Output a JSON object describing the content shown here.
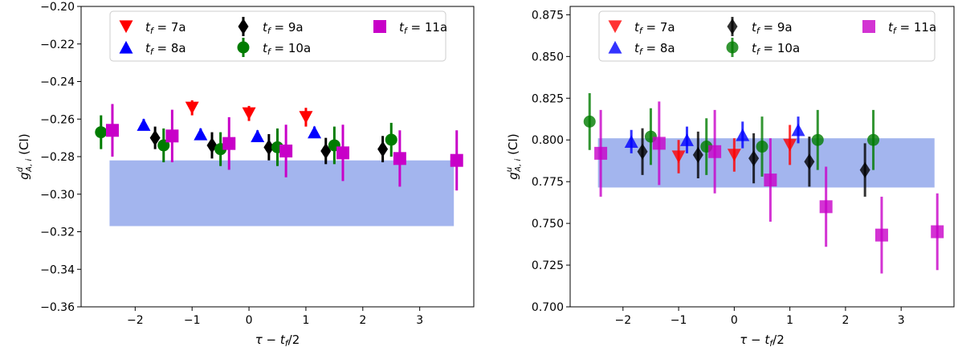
{
  "chart_data": [
    {
      "type": "scatter",
      "xlabel": "τ − t_f/2",
      "ylabel": "g^d_{A,i} (CI)",
      "xlim": [
        -2.95,
        3.95
      ],
      "ylim": [
        -0.36,
        -0.2
      ],
      "xticks": [
        "−2",
        "−1",
        "0",
        "1",
        "2",
        "3"
      ],
      "yticks": [
        "−0.36",
        "−0.34",
        "−0.32",
        "−0.30",
        "−0.28",
        "−0.26",
        "−0.24",
        "−0.22",
        "−0.20"
      ],
      "legend_position": "top",
      "band": {
        "x0": -2.45,
        "x1": 3.6,
        "y_low": -0.317,
        "y_high": -0.282,
        "color": "#a3b5ee"
      },
      "series": [
        {
          "name": "t_f = 7a",
          "marker": "triangle-down",
          "color": "#ff0000",
          "x": [
            -1.0,
            0.0,
            1.0
          ],
          "y": [
            -0.254,
            -0.257,
            -0.259
          ],
          "yerr": [
            0.004,
            0.004,
            0.005
          ]
        },
        {
          "name": "t_f = 8a",
          "marker": "triangle-up",
          "color": "#0000ff",
          "x": [
            -1.85,
            -0.85,
            0.15,
            1.15
          ],
          "y": [
            -0.263,
            -0.268,
            -0.269,
            -0.267
          ],
          "yerr": [
            0.003,
            0.003,
            0.003,
            0.003
          ]
        },
        {
          "name": "t_f = 9a",
          "marker": "diamond",
          "color": "#000000",
          "x": [
            -1.65,
            -0.65,
            0.35,
            1.35,
            2.35
          ],
          "y": [
            -0.27,
            -0.274,
            -0.275,
            -0.277,
            -0.276
          ],
          "yerr": [
            0.006,
            0.007,
            0.007,
            0.007,
            0.007
          ]
        },
        {
          "name": "t_f = 10a",
          "marker": "circle",
          "color": "#007c00",
          "x": [
            -2.6,
            -1.5,
            -0.5,
            0.5,
            1.5,
            2.5
          ],
          "y": [
            -0.267,
            -0.274,
            -0.276,
            -0.275,
            -0.274,
            -0.271
          ],
          "yerr": [
            0.009,
            0.009,
            0.009,
            0.01,
            0.01,
            0.009
          ]
        },
        {
          "name": "t_f = 11a",
          "marker": "square",
          "color": "#c800c8",
          "x": [
            -2.4,
            -1.35,
            -0.35,
            0.65,
            1.65,
            2.65,
            3.65
          ],
          "y": [
            -0.266,
            -0.269,
            -0.273,
            -0.277,
            -0.278,
            -0.281,
            -0.282
          ],
          "yerr": [
            0.014,
            0.014,
            0.014,
            0.014,
            0.015,
            0.015,
            0.016
          ]
        }
      ]
    },
    {
      "type": "scatter",
      "xlabel": "τ − t_f/2",
      "ylabel": "g^u_{A,i} (CI)",
      "xlim": [
        -2.95,
        3.95
      ],
      "ylim": [
        0.7,
        0.88
      ],
      "xticks": [
        "−2",
        "−1",
        "0",
        "1",
        "2",
        "3"
      ],
      "yticks": [
        "0.700",
        "0.725",
        "0.750",
        "0.775",
        "0.800",
        "0.825",
        "0.850",
        "0.875"
      ],
      "legend_position": "top",
      "band": {
        "x0": -2.45,
        "x1": 3.6,
        "y_low": 0.7715,
        "y_high": 0.801,
        "color": "#a3b5ee"
      },
      "series": [
        {
          "name": "t_f = 7a",
          "marker": "triangle-down",
          "color": "#ff0000",
          "x": [
            -1.0,
            0.0,
            1.0
          ],
          "y": [
            0.79,
            0.791,
            0.797
          ],
          "yerr": [
            0.01,
            0.01,
            0.012
          ]
        },
        {
          "name": "t_f = 8a",
          "marker": "triangle-up",
          "color": "#0000ff",
          "x": [
            -1.85,
            -0.85,
            0.15,
            1.15
          ],
          "y": [
            0.799,
            0.8,
            0.803,
            0.806
          ],
          "yerr": [
            0.007,
            0.008,
            0.008,
            0.008
          ]
        },
        {
          "name": "t_f = 9a",
          "marker": "diamond",
          "color": "#000000",
          "x": [
            -1.65,
            -0.65,
            0.35,
            1.35,
            2.35
          ],
          "y": [
            0.793,
            0.791,
            0.789,
            0.787,
            0.782
          ],
          "yerr": [
            0.014,
            0.014,
            0.015,
            0.015,
            0.016
          ]
        },
        {
          "name": "t_f = 10a",
          "marker": "circle",
          "color": "#007c00",
          "x": [
            -2.6,
            -1.5,
            -0.5,
            0.5,
            1.5,
            2.5
          ],
          "y": [
            0.811,
            0.802,
            0.796,
            0.796,
            0.8,
            0.8
          ],
          "yerr": [
            0.017,
            0.017,
            0.017,
            0.018,
            0.018,
            0.018
          ]
        },
        {
          "name": "t_f = 11a",
          "marker": "square",
          "color": "#c800c8",
          "x": [
            -2.4,
            -1.35,
            -0.35,
            0.65,
            1.65,
            2.65,
            3.65
          ],
          "y": [
            0.792,
            0.798,
            0.793,
            0.776,
            0.76,
            0.743,
            0.745
          ],
          "yerr": [
            0.026,
            0.025,
            0.025,
            0.025,
            0.024,
            0.023,
            0.023
          ]
        }
      ]
    }
  ]
}
